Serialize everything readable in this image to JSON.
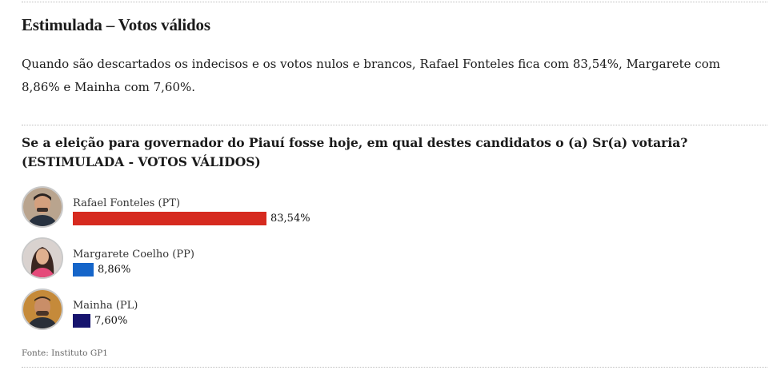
{
  "section_title": "Estimulada – Votos válidos",
  "summary": "Quando são descartados os indecisos e os votos nulos e brancos, Rafael Fonteles fica com 83,54%, Margarete com 8,86% e Mainha com 7,60%.",
  "source": "Fonte: Instituto GP1",
  "chart_data": {
    "type": "bar",
    "orientation": "horizontal",
    "title": "Se a eleição para governador do Piauí fosse hoje, em qual destes candidatos o (a) Sr(a) votaria? (ESTIMULADA - VOTOS VÁLIDOS)",
    "categories": [
      "Rafael Fonteles (PT)",
      "Margarete Coelho (PP)",
      "Mainha (PL)"
    ],
    "values": [
      83.54,
      8.86,
      7.6
    ],
    "labels": [
      "83,54%",
      "8,86%",
      "7,60%"
    ],
    "colors": [
      "#d62a1f",
      "#1565c9",
      "#16146e"
    ],
    "xlim": [
      0,
      100
    ],
    "grid": false,
    "legend": "none"
  }
}
